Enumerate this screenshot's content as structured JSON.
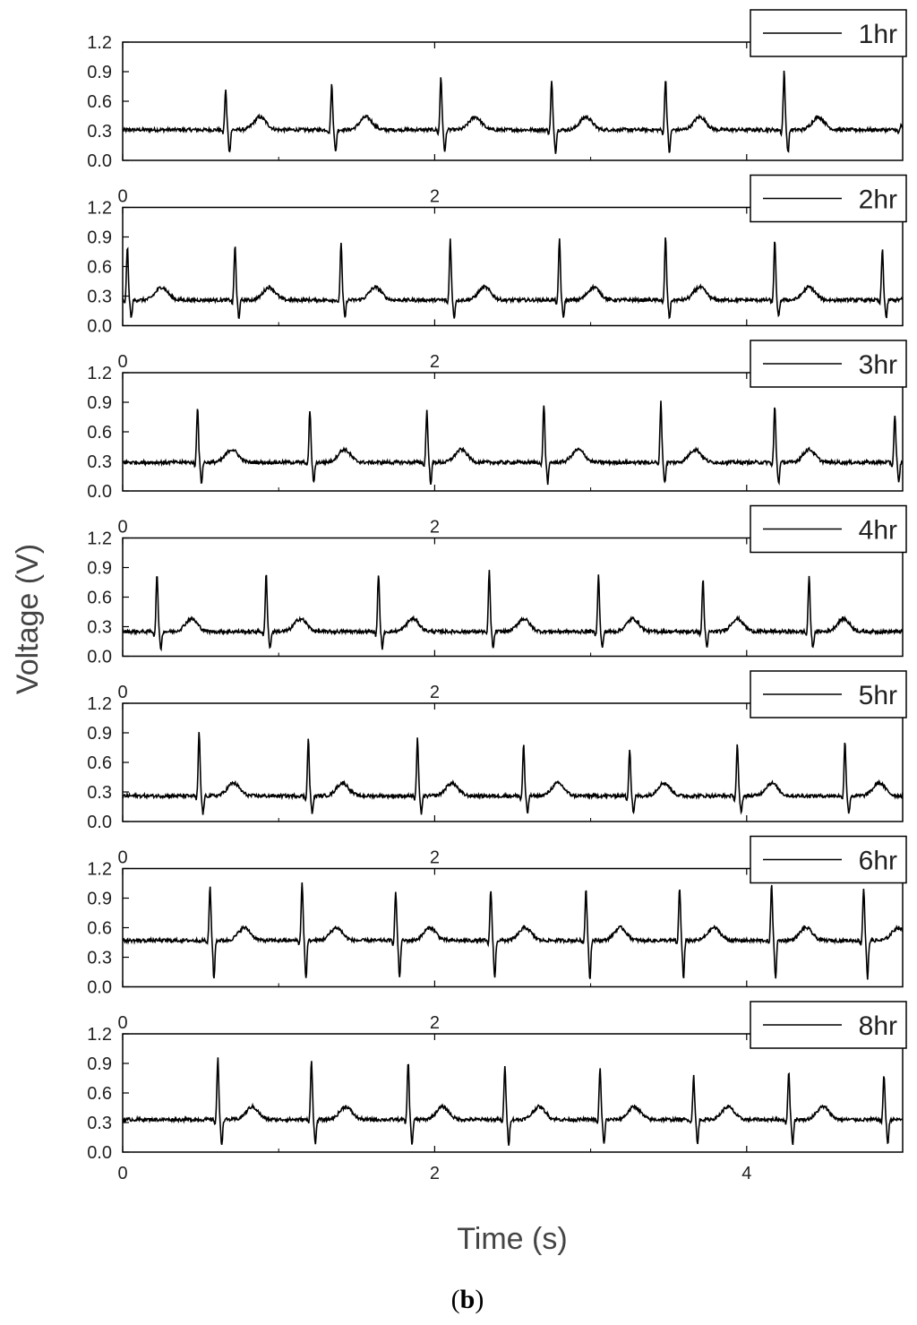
{
  "chart_data": {
    "type": "line",
    "caption": {
      "open": "(",
      "letter": "b",
      "close": ")"
    },
    "xlabel": "Time (s)",
    "ylabel": "Voltage (V)",
    "xlim": [
      0,
      5
    ],
    "ylim": [
      0,
      1.2
    ],
    "xticks": [
      0,
      2,
      4
    ],
    "yticks": [
      0.0,
      0.3,
      0.6,
      0.9,
      1.2
    ],
    "ytick_labels": [
      "0.0",
      "0.3",
      "0.6",
      "0.9",
      "1.2"
    ],
    "xtick_labels": [
      "0",
      "2",
      "4"
    ],
    "series_color": "#000000",
    "legend_position": "top-right",
    "panels": [
      {
        "name": "1hr",
        "baseline": 0.31,
        "r_peaks": [
          0.66,
          1.34,
          2.04,
          2.75,
          3.48,
          4.24,
          4.99
        ],
        "r_amp": [
          0.72,
          0.77,
          0.85,
          0.8,
          0.83,
          0.9,
          0.35
        ]
      },
      {
        "name": "2hr",
        "baseline": 0.26,
        "r_peaks": [
          0.03,
          0.72,
          1.4,
          2.1,
          2.8,
          3.48,
          4.18,
          4.87
        ],
        "r_amp": [
          0.8,
          0.82,
          0.85,
          0.88,
          0.88,
          0.9,
          0.86,
          0.78
        ]
      },
      {
        "name": "3hr",
        "baseline": 0.29,
        "r_peaks": [
          0.48,
          1.2,
          1.95,
          2.7,
          3.45,
          4.18,
          4.95
        ],
        "r_amp": [
          0.86,
          0.82,
          0.82,
          0.88,
          0.9,
          0.86,
          0.78
        ]
      },
      {
        "name": "4hr",
        "baseline": 0.25,
        "r_peaks": [
          0.22,
          0.92,
          1.64,
          2.35,
          3.05,
          3.72,
          4.4
        ],
        "r_amp": [
          0.84,
          0.84,
          0.84,
          0.86,
          0.82,
          0.78,
          0.82
        ]
      },
      {
        "name": "5hr",
        "baseline": 0.26,
        "r_peaks": [
          0.49,
          1.19,
          1.89,
          2.57,
          3.25,
          3.94,
          4.63
        ],
        "r_amp": [
          0.9,
          0.84,
          0.84,
          0.78,
          0.74,
          0.78,
          0.82
        ]
      },
      {
        "name": "6hr",
        "baseline": 0.47,
        "r_peaks": [
          0.56,
          1.15,
          1.75,
          2.36,
          2.97,
          3.57,
          4.16,
          4.75
        ],
        "r_amp": [
          1.02,
          1.06,
          0.96,
          0.98,
          1.0,
          1.0,
          1.04,
          1.0
        ]
      },
      {
        "name": "8hr",
        "baseline": 0.33,
        "r_peaks": [
          0.61,
          1.21,
          1.83,
          2.45,
          3.06,
          3.66,
          4.27,
          4.88
        ],
        "r_amp": [
          0.95,
          0.94,
          0.92,
          0.88,
          0.85,
          0.78,
          0.82,
          0.78
        ]
      }
    ]
  }
}
